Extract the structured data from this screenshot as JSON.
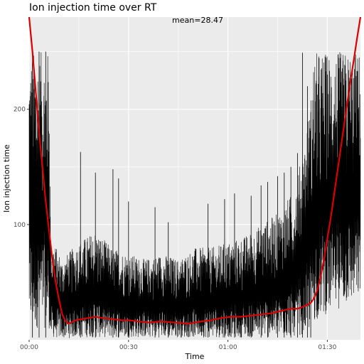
{
  "chart_data": {
    "type": "line",
    "title": "Ion injection time over RT",
    "xlabel": "Time",
    "ylabel": "Ion injection time",
    "annotation": "mean=28.47",
    "x_ticks": [
      {
        "value": 0,
        "label": "00:00"
      },
      {
        "value": 30,
        "label": "00:30"
      },
      {
        "value": 60,
        "label": "01:00"
      },
      {
        "value": 90,
        "label": "01:30"
      }
    ],
    "y_ticks": [
      {
        "value": 100,
        "label": "100"
      },
      {
        "value": 200,
        "label": "200"
      }
    ],
    "xlim": [
      0,
      100
    ],
    "ylim": [
      0,
      280
    ],
    "grid": true,
    "colors": {
      "panel": "#ebebeb",
      "grid": "#ffffff",
      "raw": "#000000",
      "trend": "#dd0000"
    },
    "series": [
      {
        "kind": "raw",
        "envelope": {
          "x": [
            0,
            0.5,
            5.5,
            6,
            6.5,
            10,
            15,
            20,
            25,
            30,
            35,
            40,
            45,
            50,
            55,
            60,
            65,
            70,
            75,
            80,
            83,
            85,
            86,
            88,
            92,
            96,
            100
          ],
          "y_max": [
            250,
            250,
            250,
            250,
            90,
            70,
            85,
            95,
            80,
            75,
            70,
            75,
            70,
            80,
            80,
            85,
            90,
            100,
            110,
            130,
            170,
            210,
            250,
            250,
            250,
            250,
            250
          ],
          "y_min": [
            10,
            10,
            10,
            10,
            2,
            1,
            2,
            2,
            2,
            2,
            2,
            2,
            2,
            2,
            2,
            2,
            2,
            2,
            2,
            3,
            5,
            8,
            15,
            20,
            25,
            30,
            35
          ]
        },
        "spikes": [
          {
            "x": 1,
            "y": 250
          },
          {
            "x": 3,
            "y": 250
          },
          {
            "x": 5,
            "y": 250
          },
          {
            "x": 15.5,
            "y": 163
          },
          {
            "x": 20,
            "y": 145
          },
          {
            "x": 25.3,
            "y": 148
          },
          {
            "x": 27,
            "y": 140
          },
          {
            "x": 30,
            "y": 120
          },
          {
            "x": 38,
            "y": 115
          },
          {
            "x": 42,
            "y": 102
          },
          {
            "x": 54,
            "y": 118
          },
          {
            "x": 59,
            "y": 122
          },
          {
            "x": 62,
            "y": 127
          },
          {
            "x": 67,
            "y": 125
          },
          {
            "x": 70,
            "y": 134
          },
          {
            "x": 72,
            "y": 137
          },
          {
            "x": 75,
            "y": 142
          },
          {
            "x": 77,
            "y": 145
          },
          {
            "x": 79,
            "y": 150
          },
          {
            "x": 81,
            "y": 162
          },
          {
            "x": 82.5,
            "y": 249
          },
          {
            "x": 84,
            "y": 220
          },
          {
            "x": 85,
            "y": 175
          }
        ]
      },
      {
        "kind": "trend",
        "x": [
          0,
          1,
          2,
          3,
          4,
          5,
          6,
          7,
          8,
          9,
          10,
          11,
          12,
          14,
          16,
          18,
          20,
          22,
          25,
          28,
          30,
          33,
          36,
          40,
          44,
          48,
          52,
          55,
          58,
          61,
          64,
          67,
          70,
          73,
          76,
          79,
          81,
          83,
          85,
          86,
          87,
          88,
          89,
          90,
          91,
          92,
          93,
          94,
          95,
          96,
          97,
          98,
          99,
          100
        ],
        "y": [
          280,
          250,
          215,
          180,
          150,
          120,
          95,
          70,
          50,
          35,
          22,
          16,
          14,
          17,
          18,
          19,
          20,
          19,
          18,
          17,
          17,
          16,
          15,
          16,
          15,
          14,
          16,
          17,
          19,
          20,
          20,
          21,
          22,
          23,
          25,
          27,
          27,
          29,
          32,
          36,
          43,
          55,
          70,
          88,
          105,
          125,
          145,
          165,
          185,
          205,
          225,
          243,
          262,
          280
        ]
      }
    ]
  }
}
